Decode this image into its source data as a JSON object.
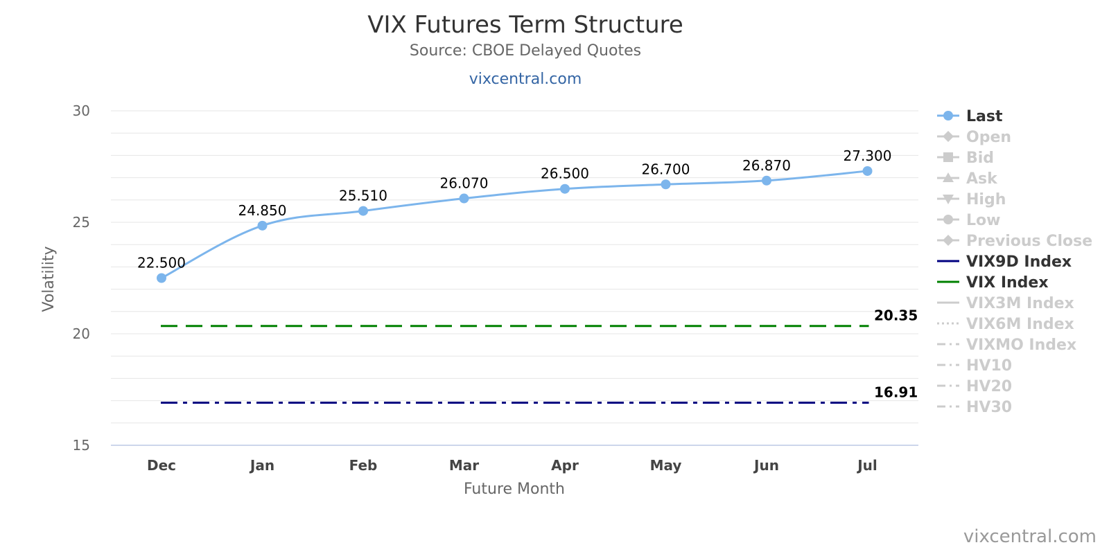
{
  "chart_data": {
    "type": "line",
    "title": "VIX Futures Term Structure",
    "subtitle": "Source: CBOE Delayed Quotes",
    "site_label": "vixcentral.com",
    "credit": "vixcentral.com",
    "xlabel": "Future Month",
    "ylabel": "Volatility",
    "categories": [
      "Dec",
      "Jan",
      "Feb",
      "Mar",
      "Apr",
      "May",
      "Jun",
      "Jul"
    ],
    "ylim": [
      15,
      30
    ],
    "yticks": [
      "15",
      "20",
      "25",
      "30"
    ],
    "grid": true,
    "legend_position": "right",
    "series": [
      {
        "name": "Last",
        "values": [
          22.5,
          24.85,
          25.51,
          26.07,
          26.5,
          26.7,
          26.87,
          27.3
        ],
        "labels": [
          "22.500",
          "24.850",
          "25.510",
          "26.070",
          "26.500",
          "26.700",
          "26.870",
          "27.300"
        ],
        "color": "#7cb5ec"
      },
      {
        "name": "VIX Index",
        "value": 20.35,
        "label": "20.35",
        "color": "#008000",
        "style": "dashed"
      },
      {
        "name": "VIX9D Index",
        "value": 16.91,
        "label": "16.91",
        "color": "#000080",
        "style": "dash-dot"
      }
    ],
    "legend": [
      {
        "name": "Last",
        "active": true,
        "symbol": "circle-line",
        "color": "#7cb5ec"
      },
      {
        "name": "Open",
        "active": false,
        "symbol": "diamond-line",
        "color": "#cccccc"
      },
      {
        "name": "Bid",
        "active": false,
        "symbol": "square-line",
        "color": "#cccccc"
      },
      {
        "name": "Ask",
        "active": false,
        "symbol": "triangle-line",
        "color": "#cccccc"
      },
      {
        "name": "High",
        "active": false,
        "symbol": "triangle-down-line",
        "color": "#cccccc"
      },
      {
        "name": "Low",
        "active": false,
        "symbol": "circle-line",
        "color": "#cccccc"
      },
      {
        "name": "Previous Close",
        "active": false,
        "symbol": "diamond-line",
        "color": "#cccccc"
      },
      {
        "name": "VIX9D Index",
        "active": true,
        "symbol": "solid",
        "color": "#000080"
      },
      {
        "name": "VIX Index",
        "active": true,
        "symbol": "solid",
        "color": "#008000"
      },
      {
        "name": "VIX3M Index",
        "active": false,
        "symbol": "solid",
        "color": "#cccccc"
      },
      {
        "name": "VIX6M Index",
        "active": false,
        "symbol": "dotted",
        "color": "#cccccc"
      },
      {
        "name": "VIXMO Index",
        "active": false,
        "symbol": "dash-dot",
        "color": "#cccccc"
      },
      {
        "name": "HV10",
        "active": false,
        "symbol": "dash-dot",
        "color": "#cccccc"
      },
      {
        "name": "HV20",
        "active": false,
        "symbol": "dash-dot",
        "color": "#cccccc"
      },
      {
        "name": "HV30",
        "active": false,
        "symbol": "dash-dot",
        "color": "#cccccc"
      }
    ],
    "colors": {
      "active_legend_text": "#333333",
      "inactive_legend_text": "#cccccc",
      "grid": "#e6e6e6",
      "axis": "#ccd6eb"
    }
  }
}
